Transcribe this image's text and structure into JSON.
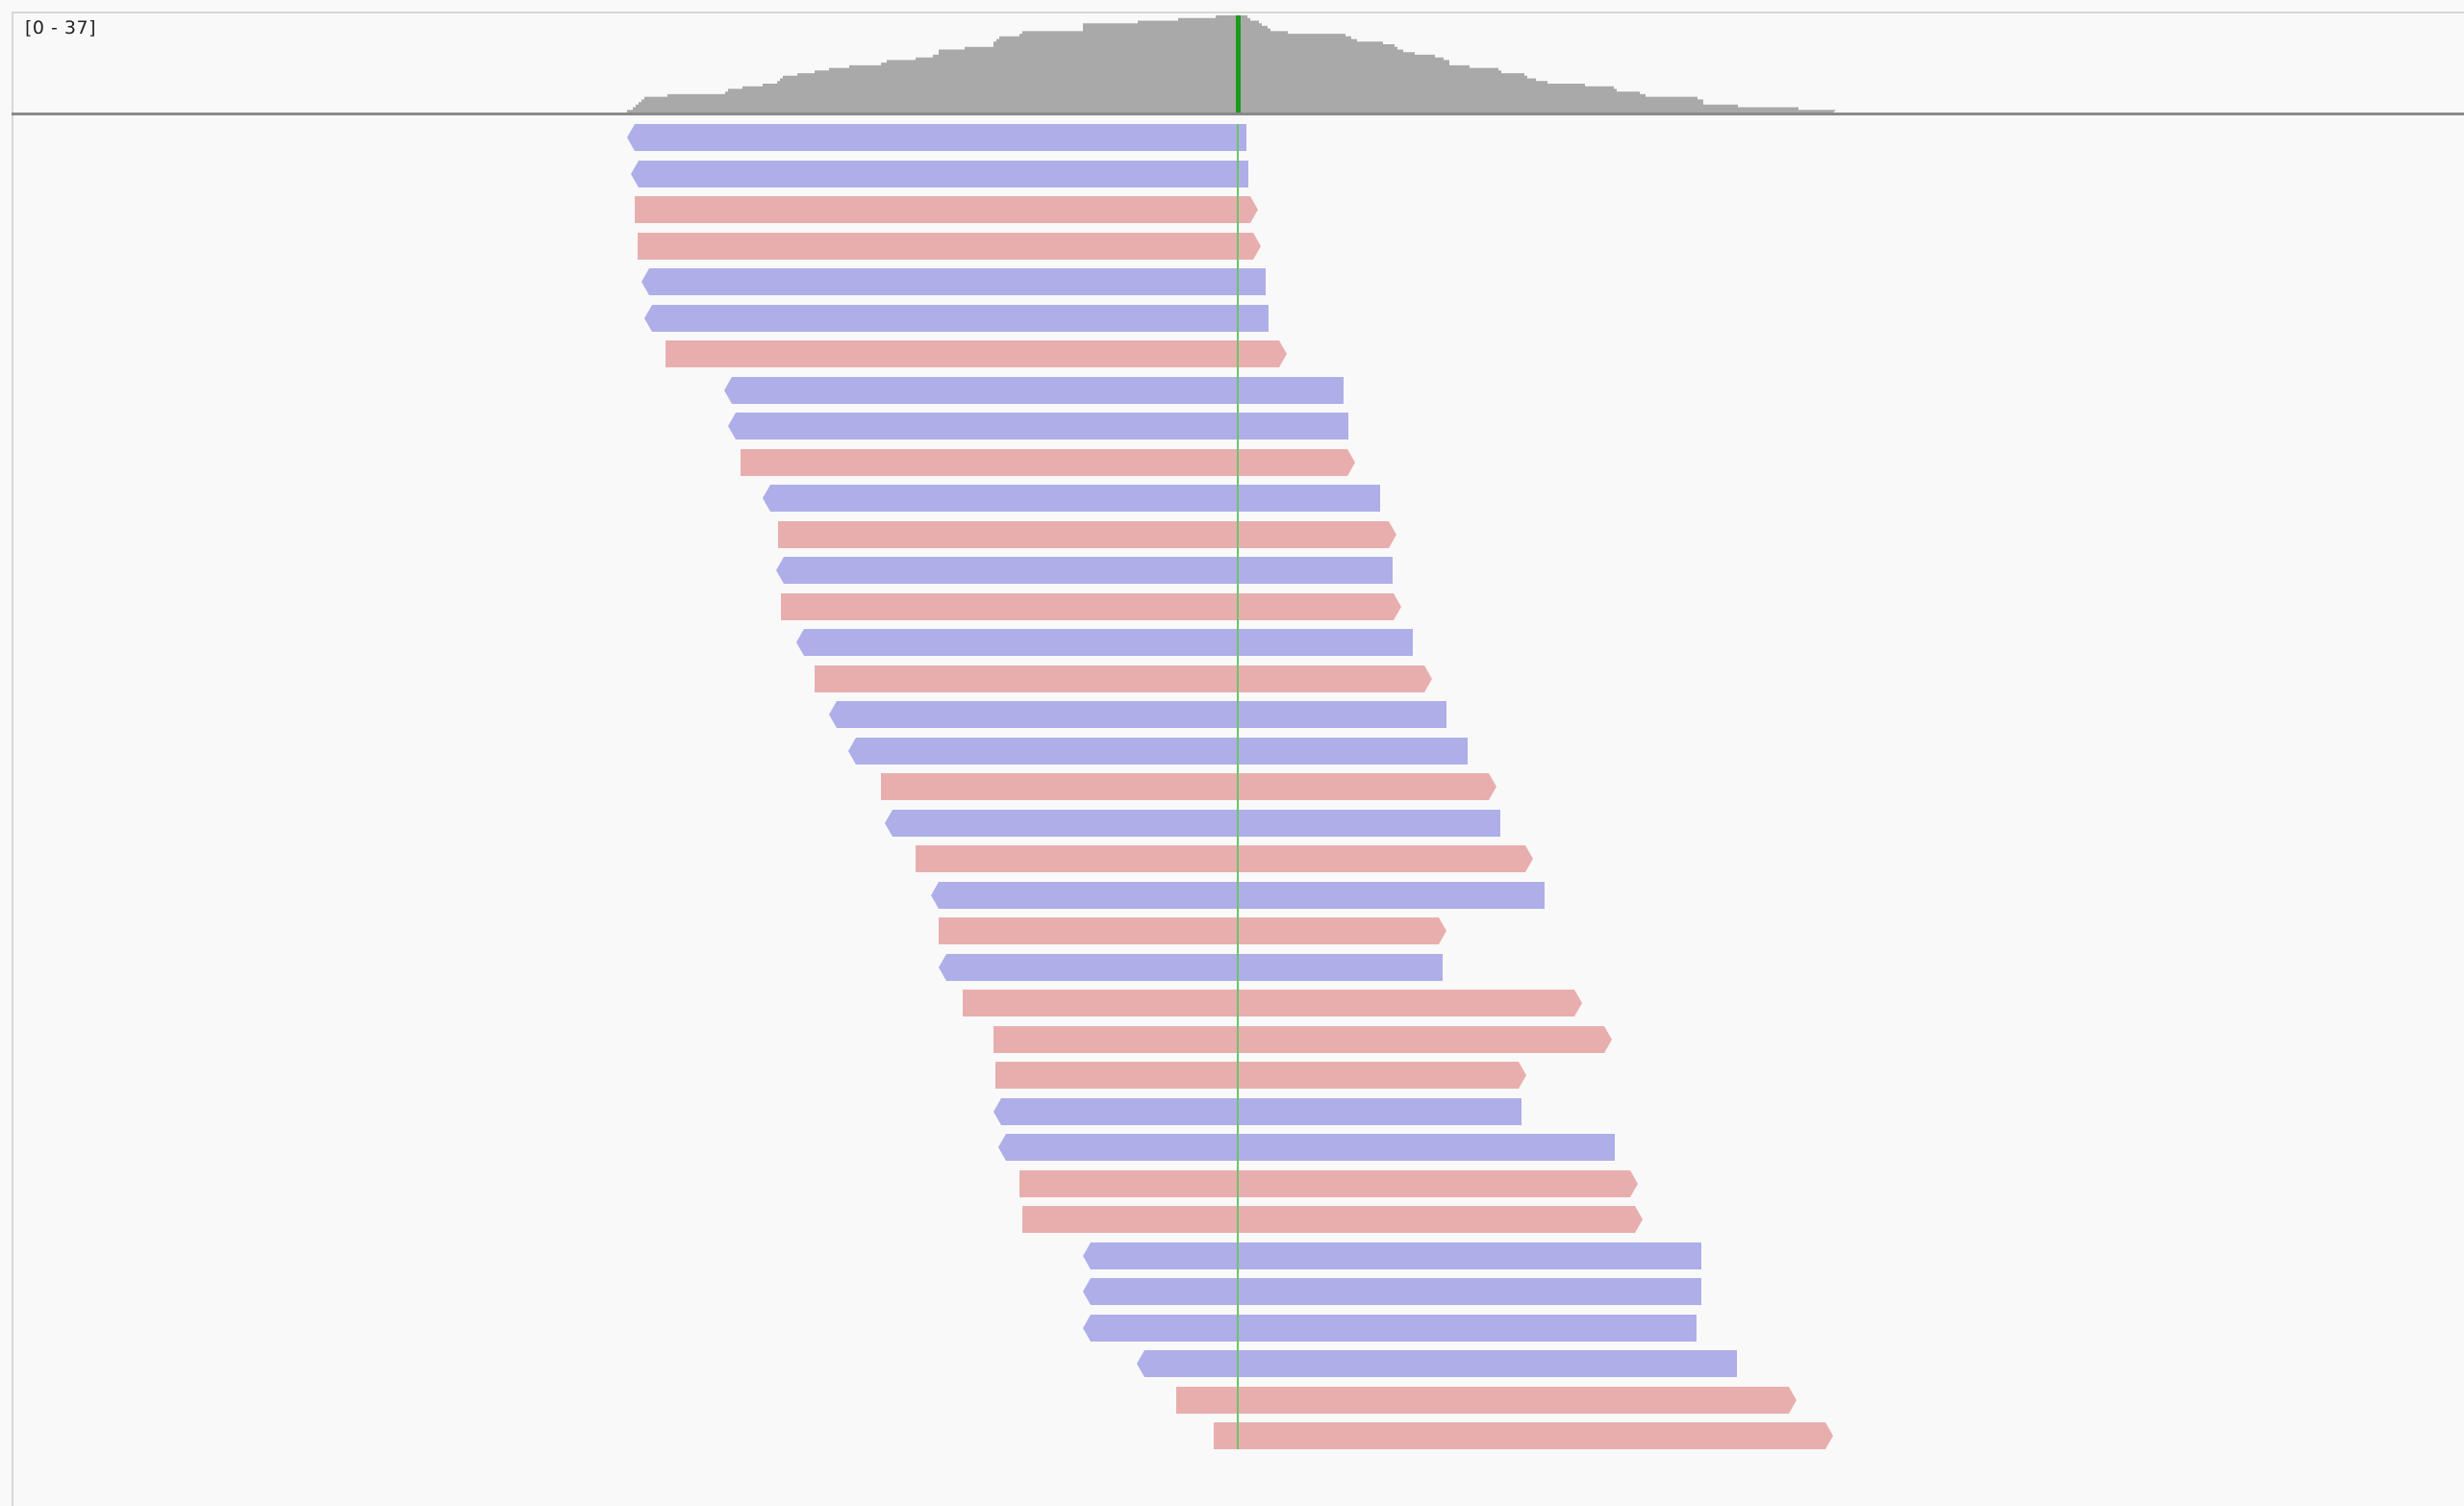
{
  "coverage": {
    "range_label": "[0 - 37]",
    "max": 37,
    "fill_color": "#a9a9a9",
    "variant_color": "#1a9a1a"
  },
  "colors": {
    "forward_strand": "#e8aeae",
    "reverse_strand": "#aeaee8",
    "mismatch_line": "#6cc46c"
  },
  "reads": [
    {
      "strand": "reverse",
      "start": 0,
      "end": 644
    },
    {
      "strand": "reverse",
      "start": 4,
      "end": 646
    },
    {
      "strand": "forward",
      "start": 8,
      "end": 656
    },
    {
      "strand": "forward",
      "start": 11,
      "end": 659
    },
    {
      "strand": "reverse",
      "start": 15,
      "end": 664
    },
    {
      "strand": "reverse",
      "start": 18,
      "end": 667
    },
    {
      "strand": "forward",
      "start": 40,
      "end": 686
    },
    {
      "strand": "reverse",
      "start": 101,
      "end": 745
    },
    {
      "strand": "reverse",
      "start": 105,
      "end": 750
    },
    {
      "strand": "forward",
      "start": 118,
      "end": 757
    },
    {
      "strand": "reverse",
      "start": 141,
      "end": 783
    },
    {
      "strand": "forward",
      "start": 157,
      "end": 800
    },
    {
      "strand": "reverse",
      "start": 155,
      "end": 796
    },
    {
      "strand": "forward",
      "start": 160,
      "end": 805
    },
    {
      "strand": "reverse",
      "start": 176,
      "end": 817
    },
    {
      "strand": "forward",
      "start": 195,
      "end": 837
    },
    {
      "strand": "reverse",
      "start": 210,
      "end": 852
    },
    {
      "strand": "reverse",
      "start": 230,
      "end": 874
    },
    {
      "strand": "forward",
      "start": 264,
      "end": 904
    },
    {
      "strand": "reverse",
      "start": 268,
      "end": 908
    },
    {
      "strand": "forward",
      "start": 300,
      "end": 942
    },
    {
      "strand": "reverse",
      "start": 316,
      "end": 954
    },
    {
      "strand": "forward",
      "start": 324,
      "end": 852
    },
    {
      "strand": "reverse",
      "start": 324,
      "end": 848
    },
    {
      "strand": "forward",
      "start": 349,
      "end": 993
    },
    {
      "strand": "forward",
      "start": 381,
      "end": 1024
    },
    {
      "strand": "forward",
      "start": 383,
      "end": 935
    },
    {
      "strand": "reverse",
      "start": 381,
      "end": 930
    },
    {
      "strand": "reverse",
      "start": 386,
      "end": 1027
    },
    {
      "strand": "forward",
      "start": 408,
      "end": 1051
    },
    {
      "strand": "forward",
      "start": 411,
      "end": 1056
    },
    {
      "strand": "reverse",
      "start": 474,
      "end": 1117
    },
    {
      "strand": "reverse",
      "start": 474,
      "end": 1117
    },
    {
      "strand": "reverse",
      "start": 474,
      "end": 1112
    },
    {
      "strand": "reverse",
      "start": 530,
      "end": 1154
    },
    {
      "strand": "forward",
      "start": 571,
      "end": 1216
    },
    {
      "strand": "forward",
      "start": 610,
      "end": 1254
    }
  ]
}
